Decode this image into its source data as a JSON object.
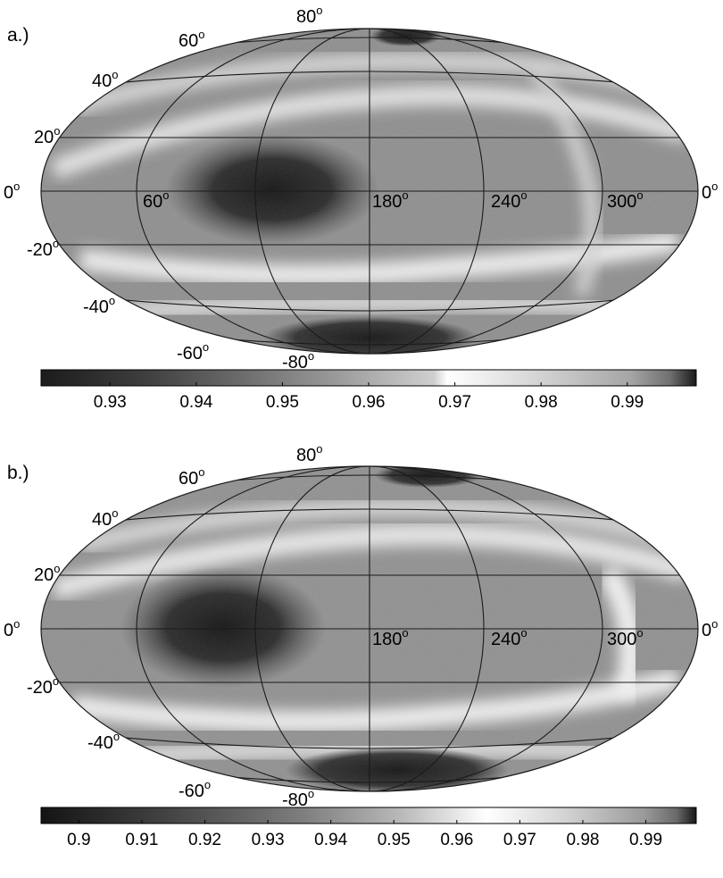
{
  "panels": [
    {
      "label": "a.)",
      "lat_labels": [
        {
          "deg": "80",
          "unit": "o"
        },
        {
          "deg": "60",
          "unit": "o"
        },
        {
          "deg": "40",
          "unit": "o"
        },
        {
          "deg": "20",
          "unit": "o"
        },
        {
          "deg": "0",
          "unit": "o"
        },
        {
          "deg": "-20",
          "unit": "o"
        },
        {
          "deg": "-40",
          "unit": "o"
        },
        {
          "deg": "-60",
          "unit": "o"
        },
        {
          "deg": "-80",
          "unit": "o"
        }
      ],
      "lon_labels": [
        {
          "deg": "60",
          "unit": "o"
        },
        {
          "deg": "180",
          "unit": "o"
        },
        {
          "deg": "240",
          "unit": "o"
        },
        {
          "deg": "300",
          "unit": "o"
        },
        {
          "deg": "0",
          "unit": "o"
        }
      ],
      "colorbar_ticks": [
        "0.93",
        "0.94",
        "0.95",
        "0.96",
        "0.97",
        "0.98",
        "0.99"
      ],
      "colorbar_range": [
        0.922,
        0.998
      ]
    },
    {
      "label": "b.)",
      "lat_labels": [
        {
          "deg": "80",
          "unit": "o"
        },
        {
          "deg": "60",
          "unit": "o"
        },
        {
          "deg": "40",
          "unit": "o"
        },
        {
          "deg": "20",
          "unit": "o"
        },
        {
          "deg": "0",
          "unit": "o"
        },
        {
          "deg": "-20",
          "unit": "o"
        },
        {
          "deg": "-40",
          "unit": "o"
        },
        {
          "deg": "-60",
          "unit": "o"
        },
        {
          "deg": "-80",
          "unit": "o"
        }
      ],
      "lon_labels": [
        {
          "deg": "180",
          "unit": "o"
        },
        {
          "deg": "240",
          "unit": "o"
        },
        {
          "deg": "300",
          "unit": "o"
        },
        {
          "deg": "0",
          "unit": "o"
        }
      ],
      "colorbar_ticks": [
        "0.9",
        "0.91",
        "0.92",
        "0.93",
        "0.94",
        "0.95",
        "0.96",
        "0.97",
        "0.98",
        "0.99"
      ],
      "colorbar_range": [
        0.894,
        0.998
      ]
    }
  ],
  "colors": {
    "line": "#1a1a1a",
    "dark": "#202020",
    "mid": "#8c8c8c",
    "light": "#f2f2f2"
  }
}
